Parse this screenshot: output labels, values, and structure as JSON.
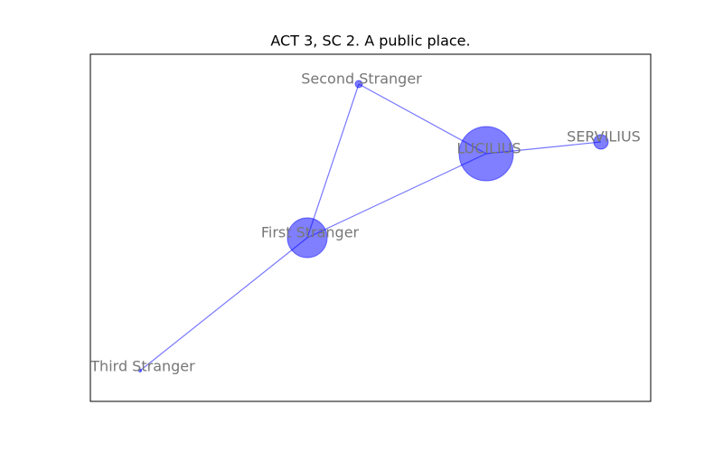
{
  "title": "ACT 3, SC 2. A public place.",
  "nodes": [
    {
      "label": "Second Stranger"
    },
    {
      "label": "LUCILIUS"
    },
    {
      "label": "SERVILIUS"
    },
    {
      "label": "First Stranger"
    },
    {
      "label": "Third Stranger"
    }
  ]
}
